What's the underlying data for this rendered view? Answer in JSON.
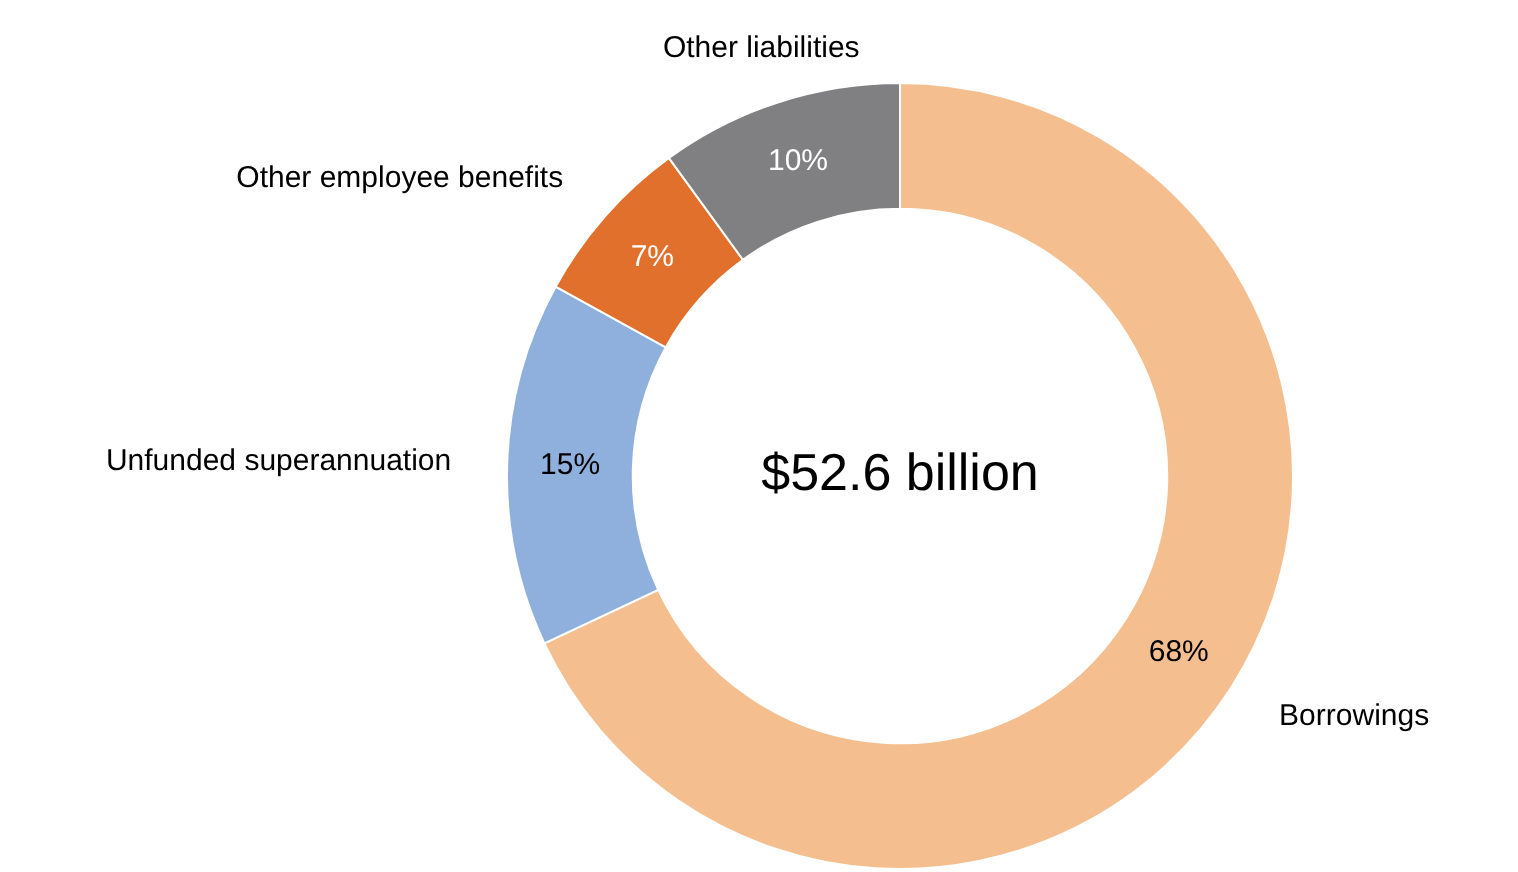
{
  "chart_data": {
    "type": "donut",
    "categories": [
      "Borrowings",
      "Unfunded superannuation",
      "Other employee benefits",
      "Other liabilities"
    ],
    "values": [
      68,
      15,
      7,
      10
    ],
    "value_labels": [
      "68%",
      "15%",
      "7%",
      "10%"
    ],
    "colors": [
      "#f4be8f",
      "#8fb0dc",
      "#e0702c",
      "#808083"
    ],
    "annotations": [
      "$52.6 billion"
    ],
    "legend": false
  }
}
